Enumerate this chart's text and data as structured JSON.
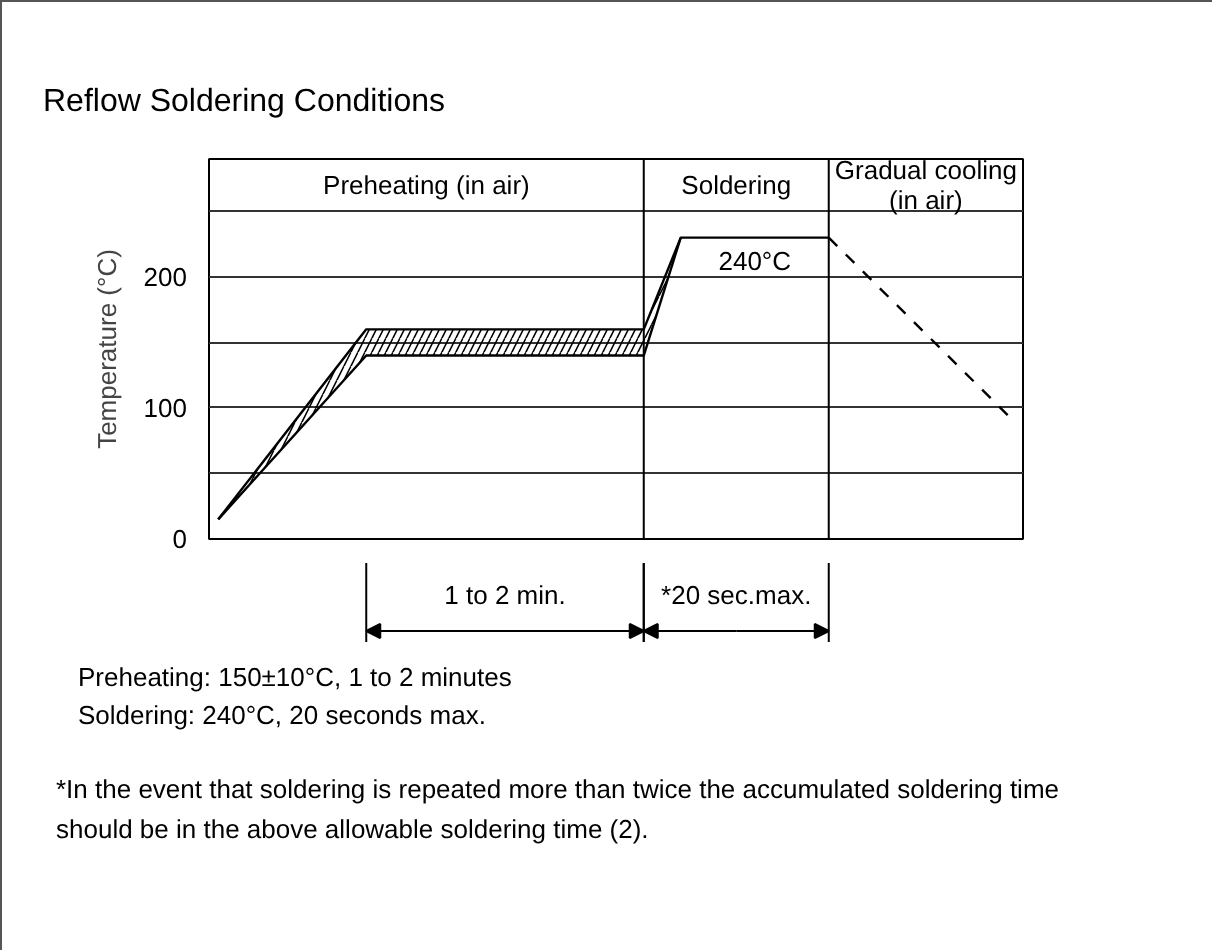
{
  "chart_data": {
    "type": "line",
    "title": "Reflow Soldering Conditions",
    "ylabel": "Temperature (°C)",
    "categories": [
      null,
      null,
      null,
      null,
      null,
      null,
      null,
      null,
      null,
      null,
      null,
      null,
      null,
      null,
      null,
      null,
      null,
      null,
      null,
      null,
      null,
      null,
      null,
      null,
      null,
      null,
      null,
      null,
      null,
      null,
      null,
      null,
      null,
      null,
      null,
      null,
      null,
      null,
      null,
      null,
      null,
      null,
      null,
      null
    ],
    "ylim": [
      0,
      290
    ],
    "yticks": [
      0,
      {
        "value": 50,
        "label": null
      },
      100,
      {
        "value": 150,
        "label": null
      },
      200,
      {
        "value": 250,
        "label": null
      }
    ],
    "grid": "y",
    "tick_labels": "y",
    "series": [
      {
        "color": "#000000",
        "values": [
          15,
          null,
          null,
          null,
          null,
          null,
          null,
          null,
          160,
          null,
          null,
          null,
          null,
          null,
          null,
          null,
          null,
          null,
          null,
          null,
          null,
          null,
          null,
          160,
          null,
          230,
          null,
          null,
          null,
          null,
          null,
          null,
          null,
          230,
          null,
          null,
          null,
          null,
          null,
          null,
          null,
          null,
          null,
          null
        ],
        "lower": [
          15,
          null,
          null,
          null,
          null,
          null,
          null,
          null,
          140,
          null,
          null,
          null,
          null,
          null,
          null,
          null,
          null,
          null,
          null,
          null,
          null,
          null,
          null,
          140,
          null,
          230,
          null,
          null,
          null,
          null,
          null,
          null,
          null,
          230,
          null,
          null,
          null,
          null,
          null,
          null,
          null,
          null,
          null,
          null
        ],
        "upper": [
          15,
          null,
          null,
          null,
          null,
          null,
          null,
          null,
          160,
          null,
          null,
          null,
          null,
          null,
          null,
          null,
          null,
          null,
          null,
          null,
          null,
          null,
          null,
          160,
          null,
          230,
          null,
          null,
          null,
          null,
          null,
          null,
          null,
          230,
          null,
          null,
          null,
          null,
          null,
          null,
          null,
          null,
          null,
          null
        ]
      },
      {
        "color": "#000000",
        "values": [
          15,
          null,
          null,
          null,
          null,
          null,
          null,
          null,
          140,
          null,
          null,
          null,
          null,
          null,
          null,
          null,
          null,
          null,
          null,
          null,
          null,
          null,
          null,
          140,
          null,
          230,
          null,
          null,
          null,
          null,
          null,
          null,
          null,
          null,
          null,
          null,
          null,
          null,
          null,
          null,
          null,
          null,
          null,
          null
        ]
      },
      {
        "color": "#000000",
        "line_style": "dashed",
        "values": [
          null,
          null,
          null,
          null,
          null,
          null,
          null,
          null,
          null,
          null,
          null,
          null,
          null,
          null,
          null,
          null,
          null,
          null,
          null,
          null,
          null,
          null,
          null,
          null,
          null,
          null,
          null,
          null,
          null,
          null,
          null,
          null,
          null,
          230,
          null,
          null,
          null,
          null,
          null,
          null,
          null,
          null,
          null,
          90
        ]
      }
    ],
    "annotations": [
      {
        "text": "240°C",
        "y": 230
      },
      "Preheating (in air)",
      "Soldering",
      "Gradual cooling\n(in air)",
      "1 to 2 min.",
      "*20 sec.max.",
      "Preheating: 150±10°C, 1 to 2 minutes",
      "Soldering: 240°C, 20 seconds max.",
      "*In the event that soldering is repeated more than twice the accumulated soldering time should be in the above allowable soldering time (2)."
    ]
  }
}
